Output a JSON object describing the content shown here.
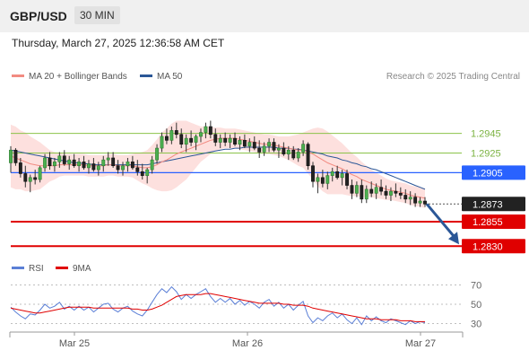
{
  "header": {
    "symbol": "GBP/USD",
    "timeframe": "30 MIN",
    "datetime": "Thursday, March 27, 2025 12:36:58 AM CET"
  },
  "legend": {
    "ma20": {
      "label": "MA 20 + Bollinger Bands",
      "color": "#f28b82"
    },
    "ma50": {
      "label": "MA 50",
      "color": "#2b5797"
    },
    "research": "Research © 2025 Trading Central"
  },
  "chart_data": [
    {
      "type": "candlestick",
      "title": "GBP/USD",
      "ylim": [
        1.2822,
        1.2985
      ],
      "x_ticks": [
        "Mar 25",
        "Mar 26",
        "Mar 27"
      ],
      "levels": [
        {
          "value": 1.2945,
          "label": "1.2945",
          "kind": "resistance",
          "color": "#8bc34a"
        },
        {
          "value": 1.2925,
          "label": "1.2925",
          "kind": "resistance",
          "color": "#8bc34a"
        },
        {
          "value": 1.2905,
          "label": "1.2905",
          "kind": "pivot",
          "color": "#2962ff"
        },
        {
          "value": 1.2873,
          "label": "1.2873",
          "kind": "last",
          "color": "#222222"
        },
        {
          "value": 1.2855,
          "label": "1.2855",
          "kind": "target",
          "color": "#e00000"
        },
        {
          "value": 1.283,
          "label": "1.2830",
          "kind": "target",
          "color": "#e00000"
        }
      ],
      "candles": [
        [
          1.2915,
          1.2932,
          1.2905,
          1.2928
        ],
        [
          1.2928,
          1.293,
          1.2912,
          1.2915
        ],
        [
          1.2915,
          1.292,
          1.29,
          1.2904
        ],
        [
          1.2904,
          1.2912,
          1.289,
          1.2896
        ],
        [
          1.2896,
          1.2903,
          1.2885,
          1.29
        ],
        [
          1.29,
          1.2908,
          1.2893,
          1.2898
        ],
        [
          1.2898,
          1.2912,
          1.2895,
          1.291
        ],
        [
          1.291,
          1.2924,
          1.2906,
          1.292
        ],
        [
          1.292,
          1.2926,
          1.2908,
          1.2912
        ],
        [
          1.2912,
          1.292,
          1.2906,
          1.2916
        ],
        [
          1.2916,
          1.2926,
          1.291,
          1.2922
        ],
        [
          1.2922,
          1.2928,
          1.2912,
          1.2914
        ],
        [
          1.2914,
          1.2922,
          1.2908,
          1.2918
        ],
        [
          1.2918,
          1.2924,
          1.291,
          1.2912
        ],
        [
          1.2912,
          1.292,
          1.2906,
          1.2916
        ],
        [
          1.2916,
          1.2922,
          1.2908,
          1.291
        ],
        [
          1.291,
          1.2918,
          1.2904,
          1.2914
        ],
        [
          1.2914,
          1.292,
          1.2906,
          1.2908
        ],
        [
          1.2908,
          1.2916,
          1.2902,
          1.2912
        ],
        [
          1.2912,
          1.2922,
          1.2906,
          1.2918
        ],
        [
          1.2918,
          1.2926,
          1.2912,
          1.292
        ],
        [
          1.292,
          1.2926,
          1.291,
          1.2912
        ],
        [
          1.2912,
          1.2918,
          1.2904,
          1.2908
        ],
        [
          1.2908,
          1.2916,
          1.2902,
          1.2912
        ],
        [
          1.2912,
          1.292,
          1.2906,
          1.2916
        ],
        [
          1.2916,
          1.2922,
          1.2908,
          1.291
        ],
        [
          1.291,
          1.2918,
          1.2902,
          1.2906
        ],
        [
          1.2906,
          1.2914,
          1.2898,
          1.2902
        ],
        [
          1.2902,
          1.291,
          1.2894,
          1.2908
        ],
        [
          1.2908,
          1.2922,
          1.2904,
          1.2918
        ],
        [
          1.2918,
          1.2934,
          1.2914,
          1.293
        ],
        [
          1.293,
          1.2946,
          1.2926,
          1.2942
        ],
        [
          1.2942,
          1.295,
          1.2934,
          1.2938
        ],
        [
          1.2938,
          1.2952,
          1.2934,
          1.2948
        ],
        [
          1.2948,
          1.2956,
          1.294,
          1.2944
        ],
        [
          1.2944,
          1.295,
          1.293,
          1.2934
        ],
        [
          1.2934,
          1.2944,
          1.2926,
          1.294
        ],
        [
          1.294,
          1.2948,
          1.2932,
          1.2936
        ],
        [
          1.2936,
          1.2944,
          1.2928,
          1.2942
        ],
        [
          1.2942,
          1.295,
          1.2936,
          1.2946
        ],
        [
          1.2946,
          1.2956,
          1.294,
          1.2952
        ],
        [
          1.2952,
          1.2958,
          1.294,
          1.2944
        ],
        [
          1.2944,
          1.295,
          1.2932,
          1.2936
        ],
        [
          1.2936,
          1.2944,
          1.293,
          1.294
        ],
        [
          1.294,
          1.2946,
          1.2932,
          1.2936
        ],
        [
          1.2936,
          1.2944,
          1.293,
          1.294
        ],
        [
          1.294,
          1.2946,
          1.2932,
          1.2934
        ],
        [
          1.2934,
          1.2942,
          1.2928,
          1.2938
        ],
        [
          1.2938,
          1.2944,
          1.293,
          1.2932
        ],
        [
          1.2932,
          1.294,
          1.2926,
          1.2936
        ],
        [
          1.2936,
          1.2942,
          1.2928,
          1.293
        ],
        [
          1.293,
          1.2938,
          1.292,
          1.2926
        ],
        [
          1.2926,
          1.2936,
          1.2922,
          1.2932
        ],
        [
          1.2932,
          1.294,
          1.2926,
          1.2936
        ],
        [
          1.2936,
          1.294,
          1.2926,
          1.2928
        ],
        [
          1.2928,
          1.2934,
          1.292,
          1.293
        ],
        [
          1.293,
          1.2936,
          1.2922,
          1.2924
        ],
        [
          1.2924,
          1.2932,
          1.2918,
          1.2928
        ],
        [
          1.2928,
          1.2932,
          1.2918,
          1.292
        ],
        [
          1.292,
          1.293,
          1.2916,
          1.2926
        ],
        [
          1.2926,
          1.2938,
          1.2922,
          1.2934
        ],
        [
          1.2934,
          1.2936,
          1.2908,
          1.2912
        ],
        [
          1.2912,
          1.2916,
          1.289,
          1.2896
        ],
        [
          1.2896,
          1.2904,
          1.2884,
          1.29
        ],
        [
          1.29,
          1.2908,
          1.289,
          1.2894
        ],
        [
          1.2894,
          1.2906,
          1.2888,
          1.2902
        ],
        [
          1.2902,
          1.291,
          1.2896,
          1.2906
        ],
        [
          1.2906,
          1.2912,
          1.2898,
          1.29
        ],
        [
          1.29,
          1.2908,
          1.2892,
          1.2904
        ],
        [
          1.2904,
          1.2908,
          1.2888,
          1.2892
        ],
        [
          1.2892,
          1.2898,
          1.2878,
          1.2884
        ],
        [
          1.2884,
          1.2896,
          1.288,
          1.2892
        ],
        [
          1.2892,
          1.2898,
          1.2874,
          1.2878
        ],
        [
          1.2878,
          1.2892,
          1.2874,
          1.2888
        ],
        [
          1.2888,
          1.2896,
          1.288,
          1.2884
        ],
        [
          1.2884,
          1.2894,
          1.2878,
          1.289
        ],
        [
          1.289,
          1.2898,
          1.2882,
          1.2886
        ],
        [
          1.2886,
          1.2892,
          1.2878,
          1.2882
        ],
        [
          1.2882,
          1.289,
          1.2876,
          1.2886
        ],
        [
          1.2886,
          1.2894,
          1.288,
          1.2884
        ],
        [
          1.2884,
          1.289,
          1.2878,
          1.2882
        ],
        [
          1.2882,
          1.2888,
          1.2874,
          1.2878
        ],
        [
          1.2878,
          1.2886,
          1.2872,
          1.288
        ],
        [
          1.288,
          1.2884,
          1.287,
          1.2874
        ],
        [
          1.2874,
          1.288,
          1.287,
          1.2876
        ],
        [
          1.2876,
          1.288,
          1.287,
          1.2873
        ]
      ],
      "ma20": [
        1.2922,
        1.292,
        1.2918,
        1.2916,
        1.2914,
        1.2913,
        1.2912,
        1.2912,
        1.2912,
        1.2912,
        1.2913,
        1.2913,
        1.2913,
        1.2913,
        1.2913,
        1.2913,
        1.2912,
        1.2912,
        1.2912,
        1.2912,
        1.2913,
        1.2913,
        1.2912,
        1.2912,
        1.2912,
        1.2912,
        1.2911,
        1.291,
        1.291,
        1.2911,
        1.2913,
        1.2916,
        1.2918,
        1.2921,
        1.2924,
        1.2926,
        1.2928,
        1.293,
        1.2932,
        1.2934,
        1.2936,
        1.2938,
        1.2939,
        1.294,
        1.294,
        1.294,
        1.294,
        1.2939,
        1.2938,
        1.2937,
        1.2936,
        1.2935,
        1.2934,
        1.2934,
        1.2933,
        1.2932,
        1.2931,
        1.293,
        1.2929,
        1.2928,
        1.2928,
        1.2926,
        1.2924,
        1.2921,
        1.2918,
        1.2915,
        1.2913,
        1.2911,
        1.2909,
        1.2906,
        1.2903,
        1.2901,
        1.2898,
        1.2896,
        1.2894,
        1.2892,
        1.289,
        1.2888,
        1.2887,
        1.2886,
        1.2885,
        1.2884,
        1.2882,
        1.2881,
        1.288,
        1.2879
      ],
      "ma50": [
        1.2928,
        1.2927,
        1.2926,
        1.2925,
        1.2924,
        1.2923,
        1.2922,
        1.2921,
        1.292,
        1.2919,
        1.2918,
        1.2917,
        1.2916,
        1.2915,
        1.2915,
        1.2914,
        1.2914,
        1.2913,
        1.2913,
        1.2913,
        1.2913,
        1.2913,
        1.2913,
        1.2913,
        1.2913,
        1.2913,
        1.2913,
        1.2913,
        1.2913,
        1.2914,
        1.2915,
        1.2916,
        1.2917,
        1.2918,
        1.2919,
        1.292,
        1.2921,
        1.2922,
        1.2923,
        1.2924,
        1.2925,
        1.2926,
        1.2927,
        1.2928,
        1.2929,
        1.2929,
        1.293,
        1.293,
        1.2931,
        1.2931,
        1.2931,
        1.2931,
        1.2931,
        1.2931,
        1.2931,
        1.293,
        1.293,
        1.293,
        1.2929,
        1.2929,
        1.2928,
        1.2927,
        1.2926,
        1.2925,
        1.2924,
        1.2922,
        1.2921,
        1.292,
        1.2918,
        1.2917,
        1.2915,
        1.2914,
        1.2912,
        1.2911,
        1.2909,
        1.2908,
        1.2906,
        1.2904,
        1.2902,
        1.29,
        1.2898,
        1.2896,
        1.2894,
        1.2892,
        1.289,
        1.2888
      ],
      "bb_width": [
        0.0032,
        0.0032,
        0.003,
        0.003,
        0.0028,
        0.0026,
        0.0024,
        0.002,
        0.0016,
        0.0014,
        0.0012,
        0.0011,
        0.0011,
        0.0011,
        0.0011,
        0.0011,
        0.0011,
        0.0011,
        0.0011,
        0.0011,
        0.0011,
        0.0011,
        0.0011,
        0.0011,
        0.0011,
        0.0012,
        0.0014,
        0.0016,
        0.0018,
        0.0022,
        0.0026,
        0.003,
        0.0032,
        0.0034,
        0.0034,
        0.0032,
        0.003,
        0.0026,
        0.0022,
        0.0018,
        0.0016,
        0.0014,
        0.0012,
        0.0011,
        0.001,
        0.001,
        0.001,
        0.001,
        0.001,
        0.001,
        0.001,
        0.001,
        0.001,
        0.001,
        0.001,
        0.001,
        0.0011,
        0.0012,
        0.0014,
        0.0016,
        0.0018,
        0.0022,
        0.0026,
        0.003,
        0.0032,
        0.0032,
        0.003,
        0.0028,
        0.0026,
        0.0024,
        0.0022,
        0.002,
        0.0018,
        0.0016,
        0.0014,
        0.0013,
        0.0012,
        0.0011,
        0.001,
        0.001,
        0.001,
        0.001,
        0.001,
        0.001,
        0.001,
        0.001
      ],
      "forecast": {
        "from": 1.2873,
        "to": 1.283
      }
    },
    {
      "type": "line",
      "title": "",
      "legend": [
        {
          "name": "RSI",
          "color": "#5b7fd6"
        },
        {
          "name": "9MA",
          "color": "#e00000"
        }
      ],
      "ylim": [
        25,
        75
      ],
      "y_ticks": [
        70,
        50,
        30
      ],
      "series": [
        {
          "name": "RSI",
          "values": [
            47,
            42,
            38,
            35,
            40,
            39,
            44,
            50,
            46,
            48,
            52,
            45,
            48,
            44,
            48,
            44,
            47,
            42,
            46,
            50,
            51,
            45,
            42,
            46,
            48,
            43,
            40,
            38,
            44,
            52,
            60,
            66,
            62,
            68,
            63,
            55,
            60,
            56,
            60,
            63,
            66,
            58,
            52,
            56,
            52,
            56,
            50,
            54,
            49,
            53,
            50,
            46,
            52,
            55,
            48,
            52,
            46,
            50,
            44,
            49,
            53,
            38,
            31,
            36,
            33,
            38,
            41,
            36,
            40,
            34,
            30,
            36,
            29,
            38,
            33,
            37,
            33,
            31,
            35,
            33,
            31,
            29,
            33,
            30,
            32,
            31
          ]
        },
        {
          "name": "9MA",
          "values": [
            46,
            45,
            44,
            43,
            42,
            41,
            41,
            42,
            43,
            44,
            45,
            46,
            47,
            47,
            47,
            47,
            47,
            46,
            46,
            46,
            46,
            46,
            46,
            46,
            46,
            45,
            45,
            44,
            44,
            45,
            47,
            49,
            52,
            55,
            58,
            59,
            60,
            60,
            60,
            60,
            61,
            61,
            60,
            59,
            58,
            57,
            56,
            55,
            54,
            53,
            52,
            51,
            51,
            51,
            51,
            51,
            50,
            50,
            49,
            49,
            49,
            48,
            46,
            45,
            44,
            43,
            42,
            41,
            40,
            39,
            38,
            37,
            36,
            35,
            35,
            35,
            34,
            34,
            34,
            34,
            33,
            33,
            33,
            32,
            32,
            32
          ]
        }
      ]
    }
  ]
}
